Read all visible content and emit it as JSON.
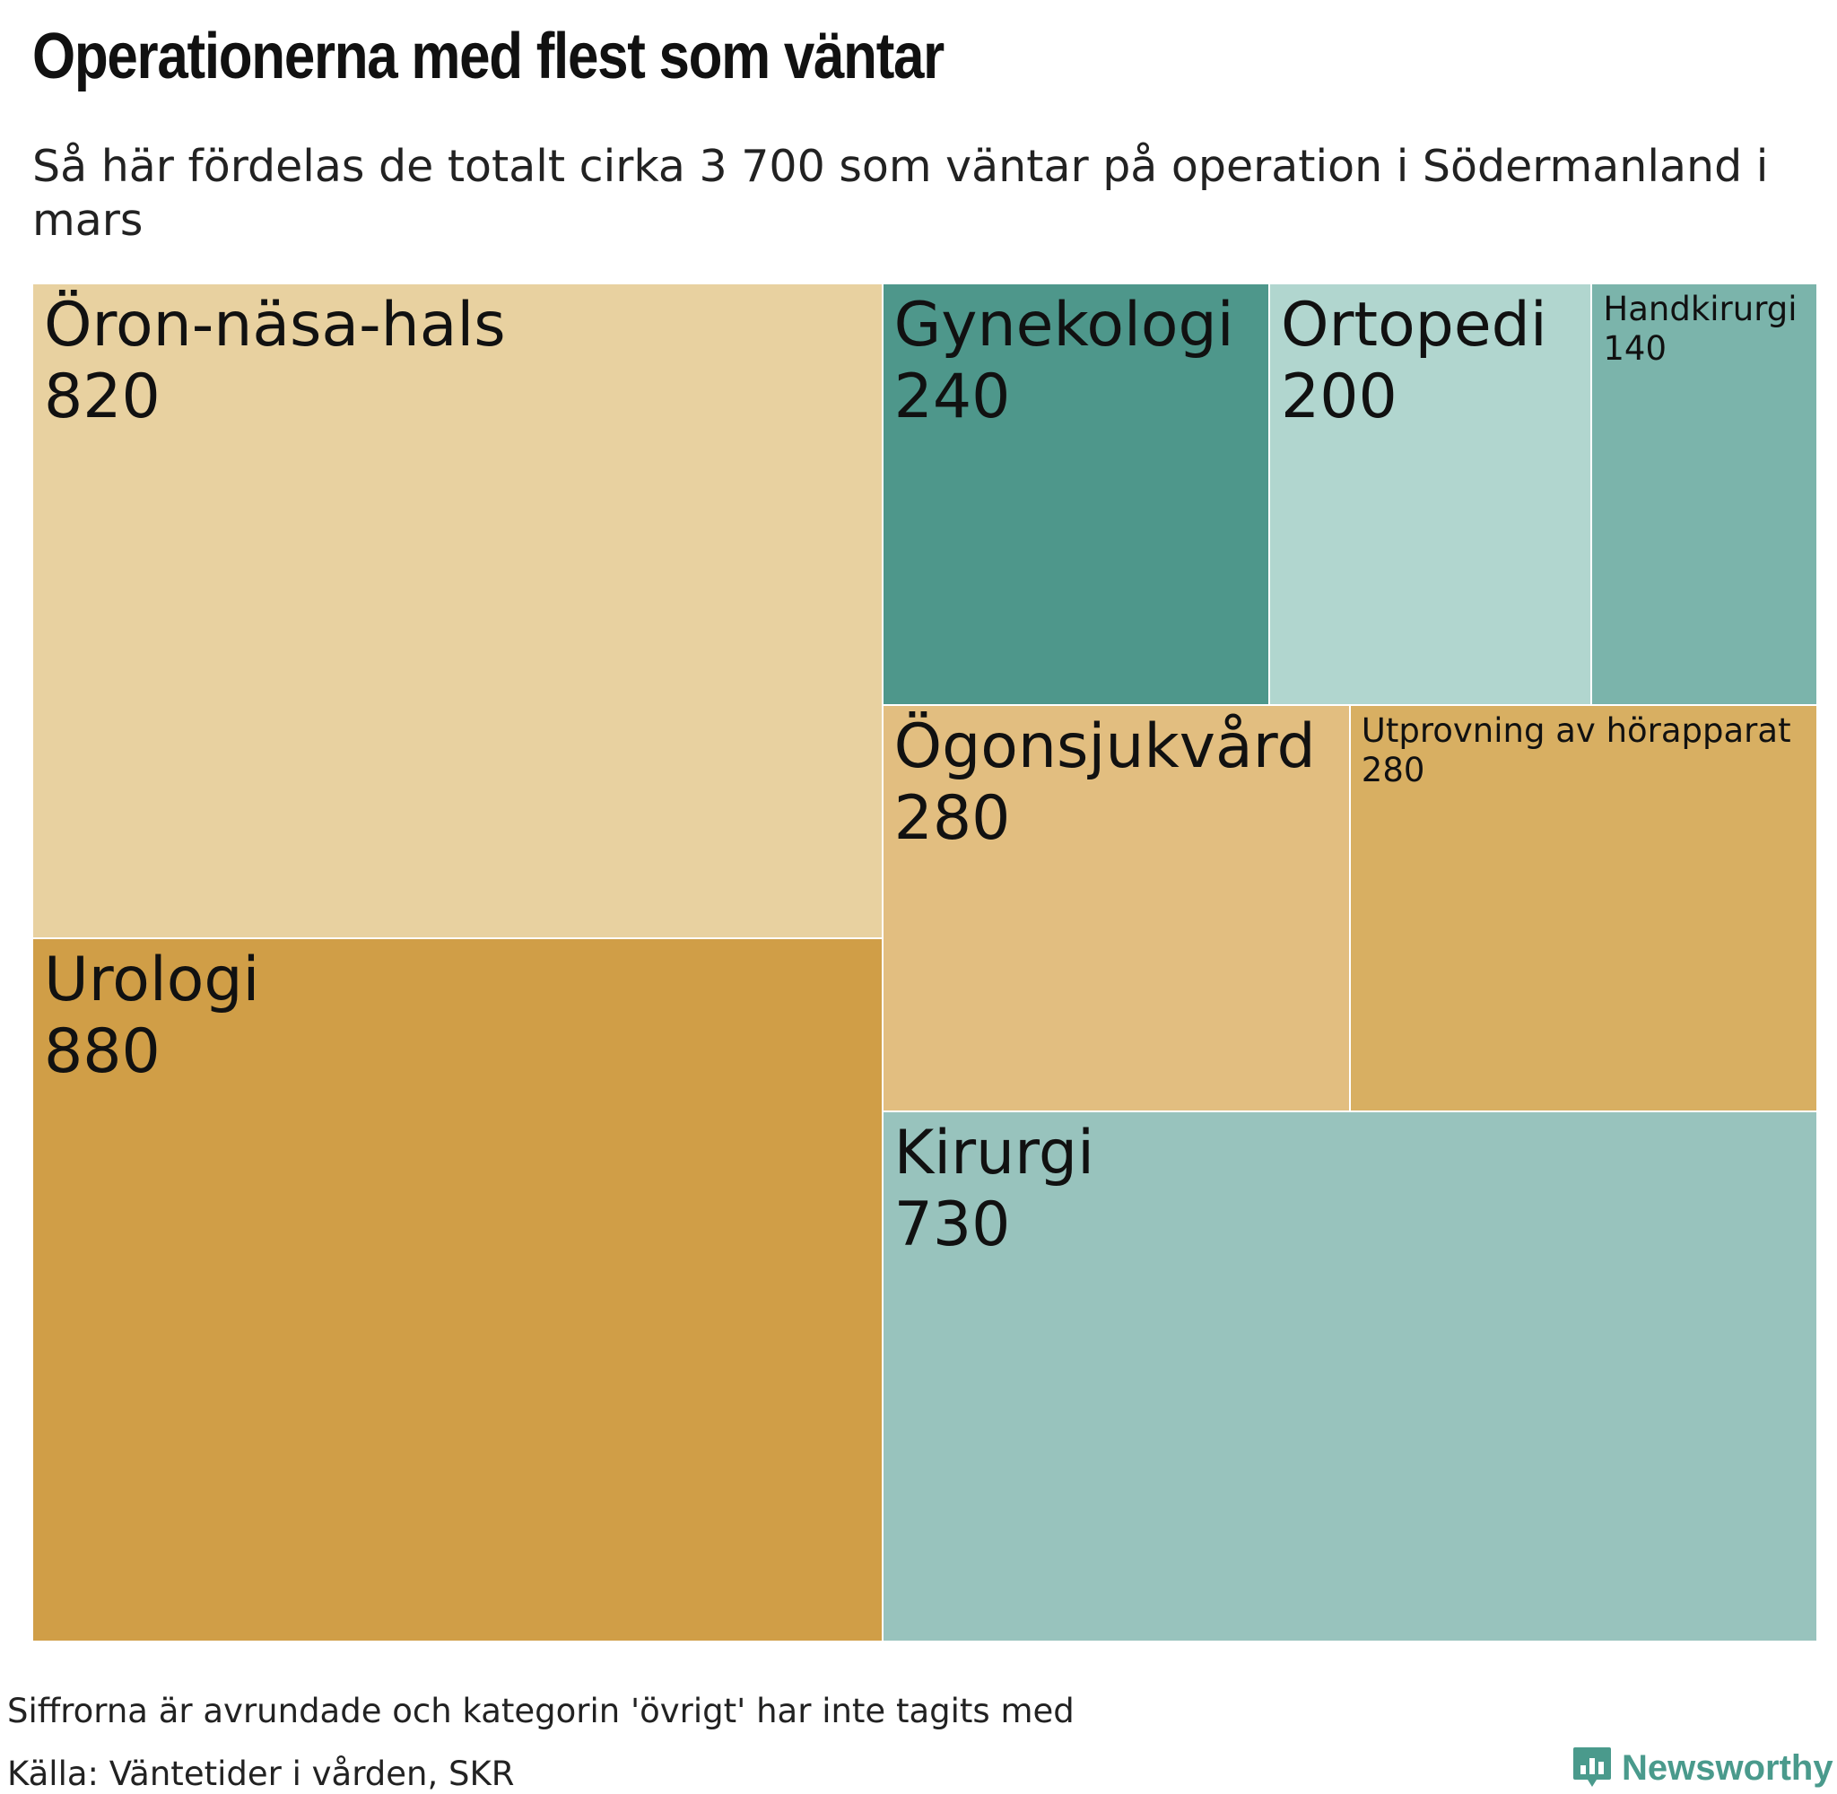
{
  "chart_data": {
    "type": "treemap",
    "title": "Operationerna med flest som väntar",
    "subtitle": "Så här fördelas de totalt cirka 3 700 som väntar på operation i Södermanland i mars",
    "series": [
      {
        "name": "Öron-näsa-hals",
        "value": 820,
        "value_label": "820",
        "color": "#e8d1a0"
      },
      {
        "name": "Urologi",
        "value": 880,
        "value_label": "880",
        "color": "#d09e47"
      },
      {
        "name": "Gynekologi",
        "value": 240,
        "value_label": "240",
        "color": "#4e978b"
      },
      {
        "name": "Ortopedi",
        "value": 200,
        "value_label": "200",
        "color": "#b1d6cf"
      },
      {
        "name": "Handkirurgi",
        "value": 140,
        "value_label": "140",
        "color": "#7bb4ab"
      },
      {
        "name": "Ögonsjukvård",
        "value": 280,
        "value_label": "280",
        "color": "#e2be80"
      },
      {
        "name": "Utprovning av hörapparat",
        "value": 280,
        "value_label": "280",
        "color": "#d8af62"
      },
      {
        "name": "Kirurgi",
        "value": 730,
        "value_label": "730",
        "color": "#98c3bd"
      }
    ]
  },
  "footer": {
    "note": "Siffrorna är avrundade och kategorin 'övrigt' har inte tagits med",
    "source": "Källa: Väntetider i vården, SKR",
    "brand": "Newsworthy",
    "brand_color": "#4a9a8c",
    "brand_icon": "bar-chart-speech-icon"
  }
}
